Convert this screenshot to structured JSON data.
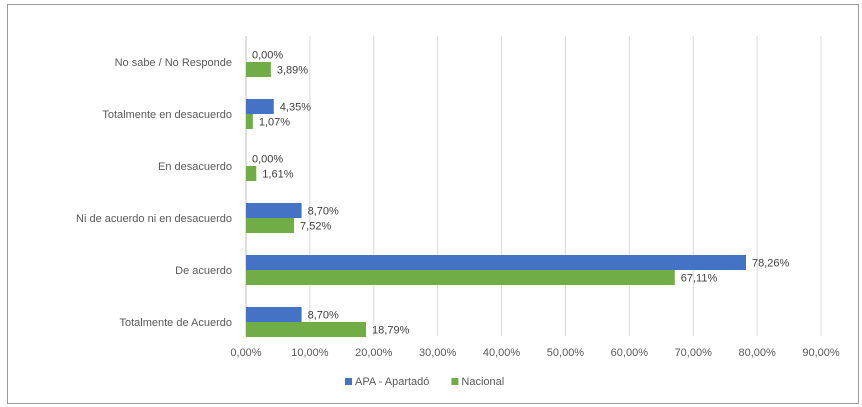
{
  "chart_data": {
    "type": "bar",
    "orientation": "horizontal",
    "categories": [
      "No sabe / No Responde",
      "Totalmente en desacuerdo",
      "En desacuerdo",
      "Ni de acuerdo ni en desacuerdo",
      "De acuerdo",
      "Totalmente de Acuerdo"
    ],
    "series": [
      {
        "name": "APA - Apartadó",
        "color": "#4472c4",
        "values": [
          0.0,
          4.35,
          0.0,
          8.7,
          78.26,
          8.7
        ],
        "labels": [
          "0,00%",
          "4,35%",
          "0,00%",
          "8,70%",
          "78,26%",
          "8,70%"
        ]
      },
      {
        "name": "Nacional",
        "color": "#70ad47",
        "values": [
          3.89,
          1.07,
          1.61,
          7.52,
          67.11,
          18.79
        ],
        "labels": [
          "3,89%",
          "1,07%",
          "1,61%",
          "7,52%",
          "67,11%",
          "18,79%"
        ]
      }
    ],
    "xlim": [
      0,
      90
    ],
    "xticks": [
      0,
      10,
      20,
      30,
      40,
      50,
      60,
      70,
      80,
      90
    ],
    "xtick_labels": [
      "0,00%",
      "10,00%",
      "20,00%",
      "30,00%",
      "40,00%",
      "50,00%",
      "60,00%",
      "70,00%",
      "80,00%",
      "90,00%"
    ],
    "grid": true,
    "legend_position": "bottom",
    "title": "",
    "xlabel": "",
    "ylabel": ""
  }
}
